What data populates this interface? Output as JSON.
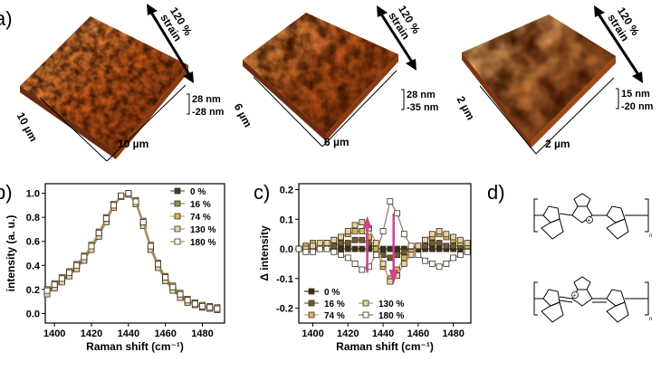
{
  "panel_a": {
    "letter": "a)",
    "afm": [
      {
        "size_x": "10 µm",
        "size_y": "10 µm",
        "z_top": "28 nm",
        "z_bottom": "-28 nm",
        "strain": "120 %",
        "strain_word": "strain"
      },
      {
        "size_x": "6 µm",
        "size_y": "6 µm",
        "z_top": "28 nm",
        "z_bottom": "-35 nm",
        "strain": "120 %",
        "strain_word": "strain"
      },
      {
        "size_x": "2 µm",
        "size_y": "2 µm",
        "z_top": "15 nm",
        "z_bottom": "-20 nm",
        "strain": "120 %",
        "strain_word": "strain"
      }
    ]
  },
  "panel_d": {
    "letter": "d)",
    "plus_sign": "+",
    "subscript_n": "n"
  },
  "chart_data": [
    {
      "panel": "b)",
      "type": "line",
      "xlabel": "Raman shift (cm⁻¹)",
      "ylabel": "intensity (a. u.)",
      "xlim": [
        1395,
        1492
      ],
      "ylim": [
        -0.08,
        1.08
      ],
      "xticks": [
        1400,
        1420,
        1440,
        1460,
        1480
      ],
      "yticks": [
        0.0,
        0.2,
        0.4,
        0.6,
        0.8,
        1.0
      ],
      "ytick_labels": [
        "0.0",
        "0.2",
        "0.4",
        "0.6",
        "0.8",
        "1.0"
      ],
      "legend_position": "top-right",
      "x": [
        1396,
        1400,
        1404,
        1408,
        1412,
        1416,
        1420,
        1424,
        1428,
        1432,
        1436,
        1440,
        1444,
        1448,
        1452,
        1456,
        1460,
        1464,
        1468,
        1472,
        1476,
        1480,
        1484,
        1488
      ],
      "series": [
        {
          "name": "0 %",
          "color": "#6e5a35",
          "marker_fill": "#4a3e27",
          "values": [
            0.18,
            0.23,
            0.28,
            0.33,
            0.39,
            0.46,
            0.55,
            0.66,
            0.78,
            0.9,
            0.98,
            1.0,
            0.93,
            0.75,
            0.55,
            0.4,
            0.29,
            0.21,
            0.15,
            0.11,
            0.08,
            0.06,
            0.05,
            0.04
          ]
        },
        {
          "name": "16 %",
          "color": "#8f7d55",
          "marker_fill": "#9a8760",
          "values": [
            0.17,
            0.22,
            0.27,
            0.32,
            0.38,
            0.45,
            0.54,
            0.65,
            0.77,
            0.89,
            0.97,
            0.99,
            0.92,
            0.74,
            0.54,
            0.39,
            0.28,
            0.2,
            0.14,
            0.1,
            0.07,
            0.05,
            0.04,
            0.03
          ]
        },
        {
          "name": "74 %",
          "color": "#c9a657",
          "marker_fill": "#d8b65c",
          "values": [
            0.2,
            0.25,
            0.3,
            0.35,
            0.41,
            0.48,
            0.57,
            0.68,
            0.8,
            0.91,
            0.98,
            1.0,
            0.94,
            0.77,
            0.57,
            0.42,
            0.31,
            0.23,
            0.17,
            0.12,
            0.09,
            0.07,
            0.06,
            0.05
          ]
        },
        {
          "name": "130 %",
          "color": "#b79c74",
          "marker_fill": "#e6d2a8",
          "values": [
            0.16,
            0.21,
            0.26,
            0.31,
            0.37,
            0.44,
            0.53,
            0.64,
            0.76,
            0.88,
            0.97,
            0.99,
            0.91,
            0.73,
            0.53,
            0.38,
            0.27,
            0.19,
            0.13,
            0.09,
            0.07,
            0.05,
            0.04,
            0.03
          ]
        },
        {
          "name": "180 %",
          "color": "#a58a6b",
          "marker_fill": "#ffffff",
          "values": [
            0.19,
            0.24,
            0.29,
            0.34,
            0.4,
            0.47,
            0.56,
            0.67,
            0.79,
            0.9,
            0.98,
            1.0,
            0.93,
            0.76,
            0.56,
            0.41,
            0.3,
            0.22,
            0.16,
            0.11,
            0.08,
            0.06,
            0.05,
            0.04
          ]
        }
      ]
    },
    {
      "panel": "c)",
      "type": "line",
      "xlabel": "Raman shift (cm⁻¹)",
      "ylabel": "Δ intensity",
      "xlim": [
        1392,
        1490
      ],
      "ylim": [
        -0.25,
        0.22
      ],
      "xticks": [
        1400,
        1420,
        1440,
        1460,
        1480
      ],
      "yticks": [
        -0.2,
        -0.1,
        0.0,
        0.1,
        0.2
      ],
      "ytick_labels": [
        "-0.2",
        "-0.1",
        "0.0",
        "0.1",
        "0.2"
      ],
      "legend_position": "bottom-left",
      "x": [
        1392,
        1396,
        1400,
        1404,
        1408,
        1412,
        1416,
        1420,
        1424,
        1428,
        1432,
        1436,
        1440,
        1444,
        1448,
        1452,
        1456,
        1460,
        1464,
        1468,
        1472,
        1476,
        1480,
        1484,
        1488
      ],
      "series": [
        {
          "name": "0 %",
          "color": "#3a2f1c",
          "marker_fill": "#3a2f1c",
          "values": [
            0.0,
            0.0,
            0.0,
            0.0,
            0.0,
            0.0,
            0.0,
            0.0,
            0.0,
            0.0,
            0.0,
            0.0,
            0.0,
            0.0,
            0.0,
            0.0,
            0.0,
            0.0,
            0.0,
            0.0,
            0.0,
            0.0,
            0.0,
            0.0,
            0.0
          ]
        },
        {
          "name": "16 %",
          "color": "#6e5a35",
          "marker_fill": "#6e5a35",
          "values": [
            0.0,
            0.01,
            0.01,
            0.0,
            0.01,
            0.01,
            0.02,
            0.02,
            0.03,
            0.03,
            0.02,
            0.0,
            -0.02,
            -0.03,
            -0.02,
            -0.01,
            0.0,
            0.01,
            0.01,
            0.02,
            0.02,
            0.01,
            0.01,
            0.01,
            0.0
          ]
        },
        {
          "name": "74 %",
          "color": "#c9a657",
          "marker_fill": "#d8b65c",
          "values": [
            0.0,
            0.01,
            0.02,
            0.01,
            0.02,
            0.03,
            0.04,
            0.05,
            0.06,
            0.06,
            0.04,
            0.0,
            -0.06,
            -0.1,
            -0.07,
            -0.03,
            -0.01,
            0.01,
            0.03,
            0.04,
            0.05,
            0.04,
            0.03,
            0.02,
            0.01
          ]
        },
        {
          "name": "130 %",
          "color": "#b79c74",
          "marker_fill": "#e6d2a8",
          "values": [
            0.0,
            0.0,
            0.01,
            0.02,
            0.02,
            0.03,
            0.04,
            0.06,
            0.08,
            0.09,
            0.07,
            0.02,
            -0.05,
            -0.11,
            -0.09,
            -0.05,
            -0.02,
            0.01,
            0.03,
            0.05,
            0.06,
            0.05,
            0.04,
            0.03,
            0.02
          ]
        },
        {
          "name": "180 %",
          "color": "#8f7d55",
          "marker_fill": "#ffffff",
          "values": [
            0.0,
            -0.01,
            -0.01,
            0.0,
            0.0,
            -0.01,
            -0.02,
            -0.03,
            -0.05,
            -0.07,
            -0.06,
            -0.02,
            0.06,
            0.16,
            0.12,
            0.05,
            0.01,
            -0.02,
            -0.04,
            -0.05,
            -0.06,
            -0.05,
            -0.03,
            -0.02,
            -0.01
          ]
        }
      ]
    }
  ]
}
